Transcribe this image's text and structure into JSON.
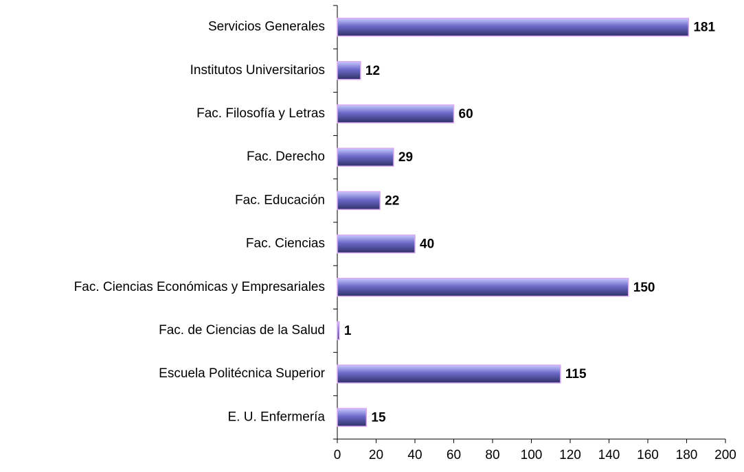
{
  "chart_data": {
    "type": "bar",
    "orientation": "horizontal",
    "categories": [
      "Servicios Generales",
      "Institutos Universitarios",
      "Fac. Filosofía y Letras",
      "Fac. Derecho",
      "Fac. Educación",
      "Fac. Ciencias",
      "Fac. Ciencias Económicas y Empresariales",
      "Fac. de Ciencias de la Salud",
      "Escuela Politécnica Superior",
      "E. U. Enfermería"
    ],
    "values": [
      181,
      12,
      60,
      29,
      22,
      40,
      150,
      1,
      115,
      15
    ],
    "color": "#6a6ac8",
    "border_color": "#d8a8f0",
    "xlim": [
      0,
      200
    ],
    "xticks": [
      0,
      20,
      40,
      60,
      80,
      100,
      120,
      140,
      160,
      180,
      200
    ],
    "grid": false
  }
}
